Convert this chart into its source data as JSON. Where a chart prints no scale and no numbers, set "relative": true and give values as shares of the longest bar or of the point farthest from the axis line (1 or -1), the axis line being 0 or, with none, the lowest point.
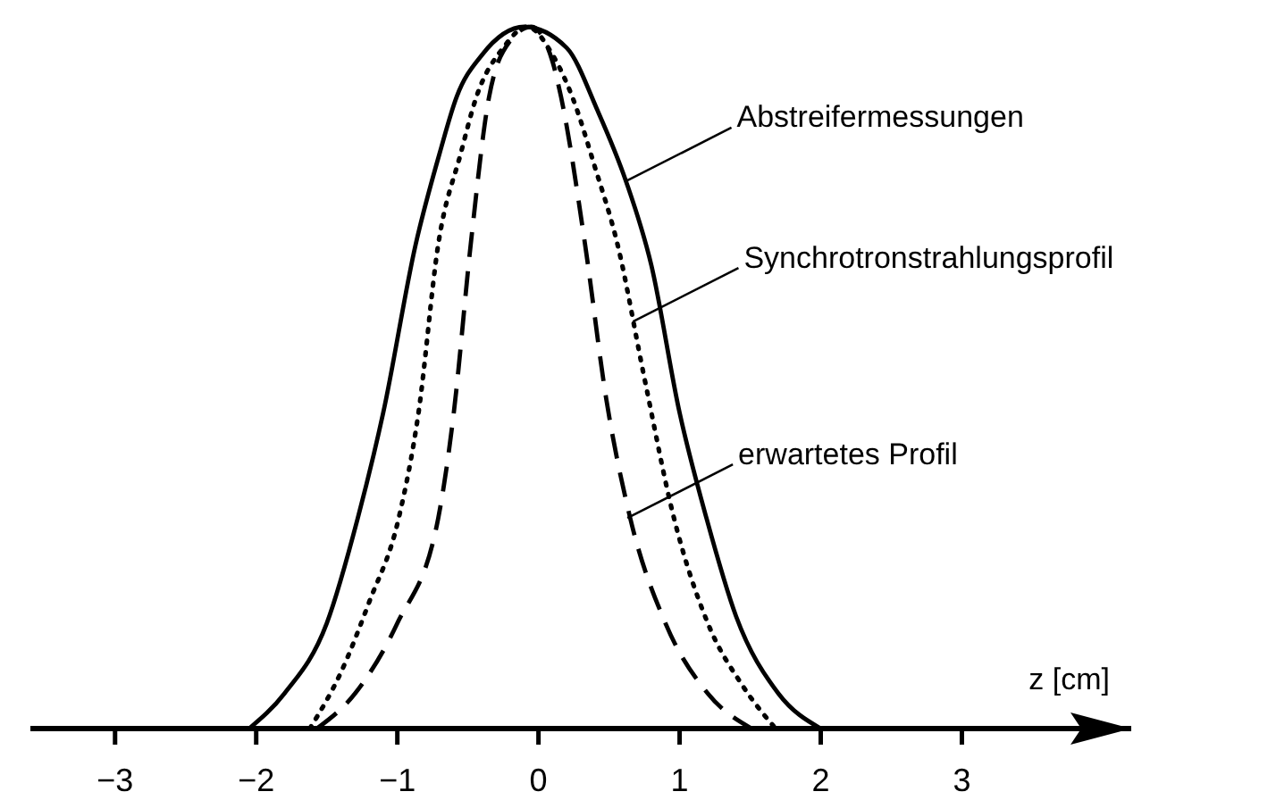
{
  "chart_data": {
    "type": "line",
    "relative": true,
    "xlabel": "z [cm]",
    "xlim": [
      -3.6,
      4.2
    ],
    "xticks": [
      {
        "value": -3,
        "label": "−3"
      },
      {
        "value": -2,
        "label": "−2"
      },
      {
        "value": -1,
        "label": "−1"
      },
      0,
      1,
      2,
      3
    ],
    "marker": "none",
    "grid": false,
    "series": [
      {
        "color": "#000000",
        "line_style": "solid",
        "x": [
          -2.05,
          -1.8,
          -1.5,
          -1.28,
          -1.1,
          -0.87,
          -0.7,
          -0.58,
          -0.4,
          -0.1,
          0.2,
          0.42,
          0.62,
          0.8,
          1.0,
          1.19,
          1.4,
          1.7,
          2.0
        ],
        "values": [
          0,
          0.05,
          0.15,
          0.3,
          0.45,
          0.69,
          0.82,
          0.9,
          0.96,
          1,
          0.97,
          0.88,
          0.78,
          0.66,
          0.45,
          0.3,
          0.16,
          0.05,
          0
        ]
      },
      {
        "color": "#000000",
        "line_style": "dotted",
        "x": [
          -1.62,
          -1.4,
          -1.2,
          -0.99,
          -0.85,
          -0.71,
          -0.55,
          -0.44,
          -0.25,
          -0.08,
          0.1,
          0.24,
          0.4,
          0.56,
          0.75,
          0.96,
          1.2,
          1.45,
          1.68
        ],
        "values": [
          0,
          0.08,
          0.18,
          0.3,
          0.45,
          0.69,
          0.82,
          0.9,
          0.97,
          1,
          0.96,
          0.9,
          0.8,
          0.69,
          0.5,
          0.3,
          0.15,
          0.06,
          0
        ]
      },
      {
        "color": "#000000",
        "line_style": "dashed",
        "x": [
          -1.57,
          -1.3,
          -1.0,
          -0.71,
          -0.6,
          -0.48,
          -0.35,
          -0.2,
          -0.05,
          0.1,
          0.16,
          0.33,
          0.48,
          0.65,
          0.9,
          1.2,
          1.51
        ],
        "values": [
          0,
          0.05,
          0.15,
          0.3,
          0.45,
          0.69,
          0.9,
          0.98,
          1,
          0.95,
          0.9,
          0.69,
          0.47,
          0.3,
          0.15,
          0.05,
          0
        ]
      }
    ],
    "annotations": [
      {
        "text": "Abstreifermessungen",
        "x": 0.62,
        "y": 0.78
      },
      {
        "text": "Synchrotronstrahlungsprofil",
        "x": 0.67,
        "y": 0.58
      },
      {
        "text": "erwartetes Profil",
        "x": 0.63,
        "y": 0.3
      }
    ]
  }
}
